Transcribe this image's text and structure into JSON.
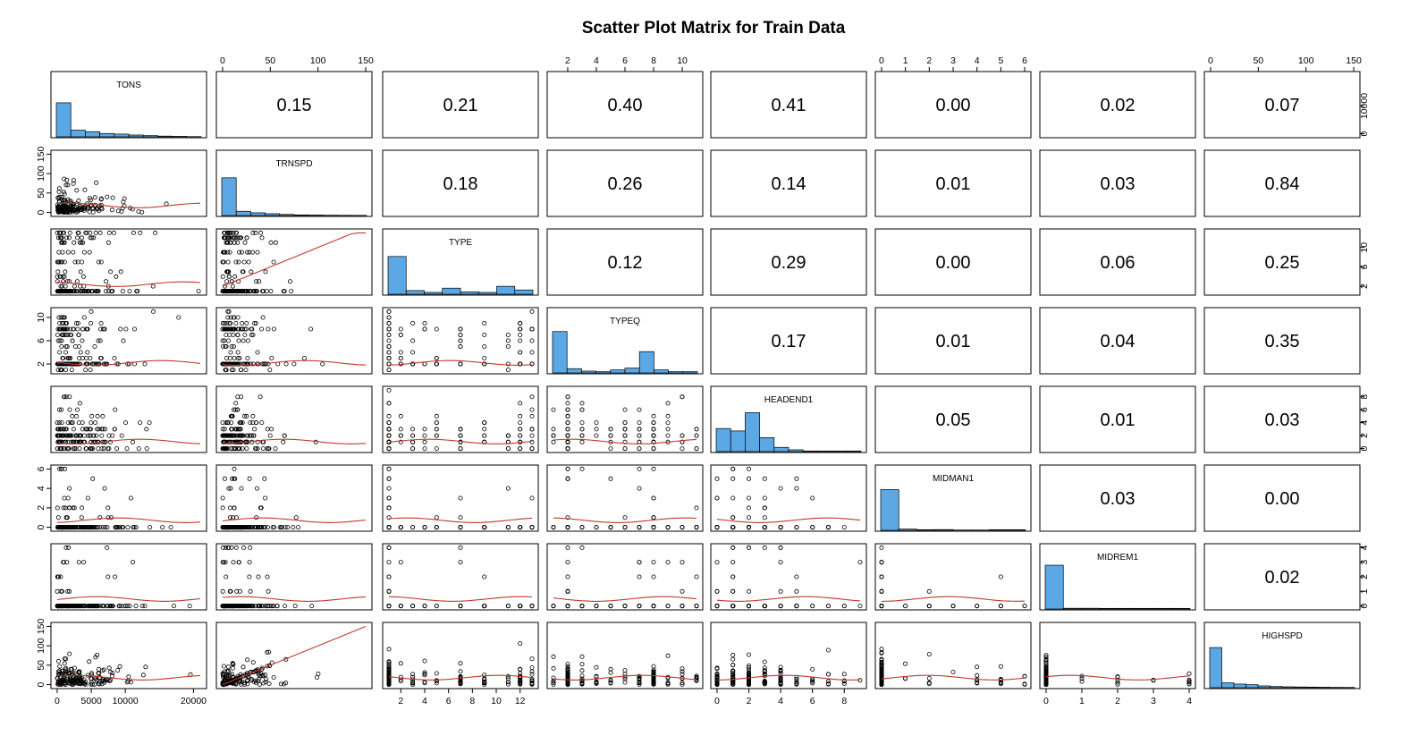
{
  "chart_data": {
    "type": "scatter",
    "title": "Scatter Plot Matrix for Train Data",
    "variables": [
      "TONS",
      "TRNSPD",
      "TYPE",
      "TYPEQ",
      "HEADEND1",
      "MIDMAN1",
      "MIDREM1",
      "HIGHSPD"
    ],
    "ranges": {
      "TONS": [
        0,
        21000
      ],
      "TRNSPD": [
        0,
        150
      ],
      "TYPE": [
        1,
        13
      ],
      "TYPEQ": [
        1,
        11
      ],
      "HEADEND1": [
        0,
        9
      ],
      "MIDMAN1": [
        0,
        6
      ],
      "MIDREM1": [
        0,
        4
      ],
      "HIGHSPD": [
        0,
        150
      ]
    },
    "ticks": {
      "TONS": {
        "values": [
          0,
          5000,
          10000,
          20000
        ],
        "labels": [
          "0",
          "5000",
          "10000",
          "20000"
        ]
      },
      "TONS_right": {
        "values": [
          0,
          10000
        ],
        "labels": [
          "0",
          "10000"
        ]
      },
      "TRNSPD": {
        "values": [
          0,
          50,
          100,
          150
        ],
        "labels": [
          "0",
          "50",
          "100",
          "150"
        ]
      },
      "TYPE": {
        "values": [
          2,
          4,
          6,
          8,
          10,
          12
        ],
        "labels": [
          "2",
          "4",
          "6",
          "8",
          "10",
          "12"
        ]
      },
      "TYPE_right": {
        "values": [
          2,
          6,
          10
        ],
        "labels": [
          "2",
          "6",
          "10"
        ]
      },
      "TYPEQ": {
        "values": [
          2,
          4,
          6,
          8,
          10
        ],
        "labels": [
          "2",
          "4",
          "6",
          "8",
          "10"
        ]
      },
      "TYPEQ_left": {
        "values": [
          2,
          6,
          10
        ],
        "labels": [
          "2",
          "6",
          "10"
        ]
      },
      "HEADEND1": {
        "values": [
          0,
          2,
          4,
          6,
          8
        ],
        "labels": [
          "0",
          "2",
          "4",
          "6",
          "8"
        ]
      },
      "MIDMAN1": {
        "values": [
          0,
          1,
          2,
          3,
          4,
          5,
          6
        ],
        "labels": [
          "0",
          "1",
          "2",
          "3",
          "4",
          "5",
          "6"
        ]
      },
      "MIDMAN1_left": {
        "values": [
          0,
          2,
          4,
          6
        ],
        "labels": [
          "0",
          "2",
          "4",
          "6"
        ]
      },
      "MIDREM1": {
        "values": [
          0,
          1,
          2,
          3,
          4
        ],
        "labels": [
          "0",
          "1",
          "2",
          "3",
          "4"
        ]
      },
      "HIGHSPD": {
        "values": [
          0,
          50,
          100,
          150
        ],
        "labels": [
          "0",
          "50",
          "100",
          "150"
        ]
      }
    },
    "correlations": [
      {
        "row": 0,
        "col": 1,
        "value": "0.15"
      },
      {
        "row": 0,
        "col": 2,
        "value": "0.21"
      },
      {
        "row": 0,
        "col": 3,
        "value": "0.40"
      },
      {
        "row": 0,
        "col": 4,
        "value": "0.41"
      },
      {
        "row": 0,
        "col": 5,
        "value": "0.00"
      },
      {
        "row": 0,
        "col": 6,
        "value": "0.02"
      },
      {
        "row": 0,
        "col": 7,
        "value": "0.07"
      },
      {
        "row": 1,
        "col": 2,
        "value": "0.18"
      },
      {
        "row": 1,
        "col": 3,
        "value": "0.26"
      },
      {
        "row": 1,
        "col": 4,
        "value": "0.14"
      },
      {
        "row": 1,
        "col": 5,
        "value": "0.01"
      },
      {
        "row": 1,
        "col": 6,
        "value": "0.03"
      },
      {
        "row": 1,
        "col": 7,
        "value": "0.84"
      },
      {
        "row": 2,
        "col": 3,
        "value": "0.12"
      },
      {
        "row": 2,
        "col": 4,
        "value": "0.29"
      },
      {
        "row": 2,
        "col": 5,
        "value": "0.00"
      },
      {
        "row": 2,
        "col": 6,
        "value": "0.06"
      },
      {
        "row": 2,
        "col": 7,
        "value": "0.25"
      },
      {
        "row": 3,
        "col": 4,
        "value": "0.17"
      },
      {
        "row": 3,
        "col": 5,
        "value": "0.01"
      },
      {
        "row": 3,
        "col": 6,
        "value": "0.04"
      },
      {
        "row": 3,
        "col": 7,
        "value": "0.35"
      },
      {
        "row": 4,
        "col": 5,
        "value": "0.05"
      },
      {
        "row": 4,
        "col": 6,
        "value": "0.01"
      },
      {
        "row": 4,
        "col": 7,
        "value": "0.03"
      },
      {
        "row": 5,
        "col": 6,
        "value": "0.03"
      },
      {
        "row": 5,
        "col": 7,
        "value": "0.00"
      },
      {
        "row": 6,
        "col": 7,
        "value": "0.02"
      }
    ],
    "histograms": {
      "TONS": [
        0.56,
        0.11,
        0.085,
        0.055,
        0.045,
        0.03,
        0.02,
        0.012,
        0.008,
        0.004
      ],
      "TRNSPD": [
        0.62,
        0.07,
        0.045,
        0.03,
        0.018,
        0.01,
        0.008,
        0.005,
        0.004,
        0.003
      ],
      "TYPE": [
        0.62,
        0.06,
        0.03,
        0.1,
        0.04,
        0.03,
        0.13,
        0.07
      ],
      "TYPEQ": [
        0.68,
        0.07,
        0.03,
        0.02,
        0.05,
        0.08,
        0.35,
        0.05,
        0.02,
        0.02
      ],
      "HEADEND1": [
        0.38,
        0.34,
        0.64,
        0.23,
        0.07,
        0.03,
        0.01,
        0.01,
        0.01,
        0.01
      ],
      "MIDMAN1": [
        0.67,
        0.02,
        0.01,
        0.012,
        0.005,
        0.005,
        0.01,
        0.01
      ],
      "MIDREM1": [
        0.72,
        0.012,
        0.012,
        0.01,
        0.01,
        0.01,
        0.01,
        0.01
      ],
      "HIGHSPD": [
        0.66,
        0.08,
        0.06,
        0.05,
        0.03,
        0.02,
        0.015,
        0.012,
        0.01,
        0.008,
        0.006,
        0.005
      ]
    },
    "hist_color": "#5ba8e5",
    "smooth_color": "#c0392b",
    "point_color": "#000000",
    "grid": false
  }
}
